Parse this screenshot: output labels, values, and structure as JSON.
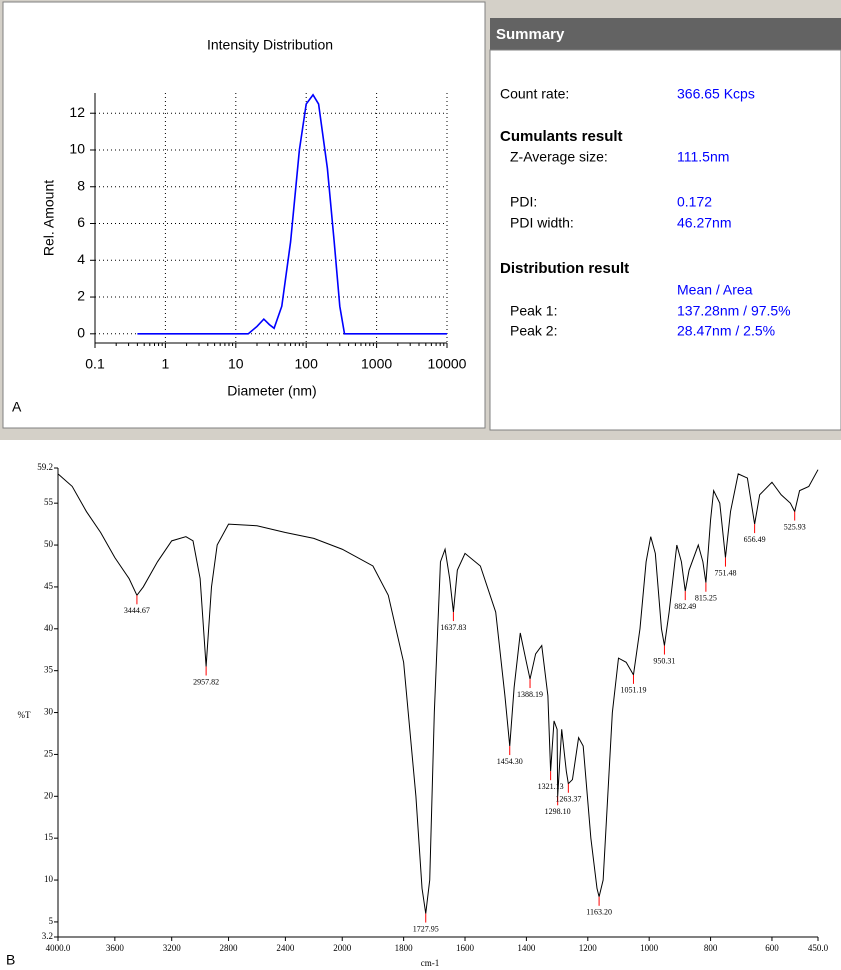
{
  "chart_data": [
    {
      "type": "line",
      "panel_label": "A",
      "title": "Intensity Distribution",
      "xlabel": "Diameter (nm)",
      "ylabel": "Rel. Amount",
      "xscale": "log",
      "grid": true,
      "color": "#0000ff",
      "x": [
        0.4,
        1,
        10,
        15,
        20,
        25,
        30,
        35,
        45,
        60,
        80,
        100,
        125,
        150,
        200,
        250,
        300,
        350,
        500,
        1000,
        10000
      ],
      "values": [
        0,
        0,
        0,
        0,
        0.4,
        0.8,
        0.5,
        0.3,
        1.5,
        5,
        10,
        12.5,
        13,
        12.5,
        9,
        5,
        1.5,
        0,
        0,
        0,
        0
      ],
      "xlim": [
        0.1,
        10000
      ],
      "xticks": [
        0.1,
        1,
        10,
        100,
        1000,
        10000
      ],
      "ylim": [
        -0.5,
        13.1
      ],
      "yticks": [
        0,
        2,
        4,
        6,
        8,
        10,
        12
      ]
    },
    {
      "type": "line",
      "panel_label": "B",
      "xlabel": "cm-1",
      "ylabel": "%T",
      "xbreak": 2000,
      "grid": false,
      "color": "#000000",
      "x": [
        4000,
        3900,
        3800,
        3700,
        3600,
        3500,
        3444.67,
        3400,
        3300,
        3200,
        3100,
        3050,
        3000,
        2957.82,
        2920,
        2880,
        2800,
        2600,
        2400,
        2200,
        2000,
        1900,
        1850,
        1800,
        1760,
        1740,
        1727.95,
        1715,
        1700,
        1680,
        1665,
        1650,
        1637.83,
        1625,
        1600,
        1550,
        1500,
        1470,
        1454.3,
        1440,
        1420,
        1400,
        1388.19,
        1370,
        1350,
        1330,
        1321.13,
        1310,
        1300,
        1298.1,
        1285,
        1270,
        1263.37,
        1250,
        1230,
        1215,
        1190,
        1170,
        1163.2,
        1150,
        1120,
        1100,
        1075,
        1051.19,
        1030,
        1010,
        995,
        980,
        960,
        950.31,
        935,
        910,
        895,
        882.49,
        870,
        840,
        825,
        815.25,
        800,
        790,
        770,
        751.48,
        735,
        710,
        680,
        656.49,
        640,
        600,
        570,
        540,
        525.93,
        510,
        480,
        450
      ],
      "values": [
        58.5,
        57,
        54,
        51.5,
        48.5,
        46,
        44,
        45,
        48,
        50.5,
        51,
        50.5,
        46,
        35.5,
        45,
        50,
        52.5,
        52.3,
        51.5,
        50.8,
        49.5,
        47.5,
        44,
        36,
        20,
        9,
        6,
        10,
        30,
        48,
        49.5,
        46,
        42,
        47,
        49,
        47.5,
        42,
        32,
        26,
        33,
        39.5,
        36,
        34,
        37,
        38,
        32,
        23,
        29,
        28,
        20,
        28,
        23,
        21.5,
        22,
        27,
        26,
        15,
        9,
        8,
        10,
        30,
        36.5,
        36,
        34.5,
        40,
        48,
        51,
        49,
        40,
        38,
        42,
        50,
        48,
        44.5,
        47,
        50,
        48,
        45.5,
        53,
        56.5,
        55,
        48.5,
        54,
        58.5,
        58,
        52.5,
        56,
        57.5,
        56,
        55,
        54,
        56.5,
        57,
        59
      ],
      "peaks": {
        "color": "#ff0000",
        "x": [
          3444.67,
          2957.82,
          1727.95,
          1637.83,
          1454.3,
          1388.19,
          1321.13,
          1298.1,
          1263.37,
          1163.2,
          1051.19,
          950.31,
          882.49,
          815.25,
          751.48,
          656.49,
          525.93
        ],
        "values": [
          44,
          35.5,
          6,
          42,
          26,
          34,
          23,
          20,
          21.5,
          8,
          34.5,
          38,
          44.5,
          45.5,
          48.5,
          52.5,
          54
        ],
        "labels": [
          "3444.67",
          "2957.82",
          "1727.95",
          "1637.83",
          "1454.30",
          "1388.19",
          "1321.13",
          "1298.10",
          "1263.37",
          "1163.20",
          "1051.19",
          "950.31",
          "882.49",
          "815.25",
          "751.48",
          "656.49",
          "525.93"
        ]
      },
      "xlim": [
        4000,
        450
      ],
      "xticks": [
        {
          "value": 4000,
          "label": "4000.0"
        },
        3600,
        3200,
        2800,
        2400,
        2000,
        1800,
        1600,
        1400,
        1200,
        1000,
        800,
        600,
        {
          "value": 450,
          "label": "450.0"
        }
      ],
      "ylim": [
        3.2,
        59.2
      ],
      "yticks": [
        3.2,
        5,
        10,
        15,
        20,
        25,
        30,
        35,
        40,
        45,
        50,
        55,
        59.2
      ]
    }
  ],
  "summary": {
    "title": "Summary",
    "count_rate": {
      "label": "Count rate:",
      "value": "366.65 Kcps"
    },
    "cumulants": {
      "heading": "Cumulants result",
      "z_average": {
        "label": "Z-Average size:",
        "value": "111.5nm"
      },
      "pdi": {
        "label": "PDI:",
        "value": "0.172"
      },
      "pdi_width": {
        "label": "PDI width:",
        "value": "46.27nm"
      }
    },
    "distribution": {
      "heading": "Distribution result",
      "column_header": "Mean / Area",
      "peaks": [
        {
          "label": "Peak 1:",
          "value": "137.28nm / 97.5%"
        },
        {
          "label": "Peak 2:",
          "value": "28.47nm / 2.5%"
        }
      ]
    }
  }
}
